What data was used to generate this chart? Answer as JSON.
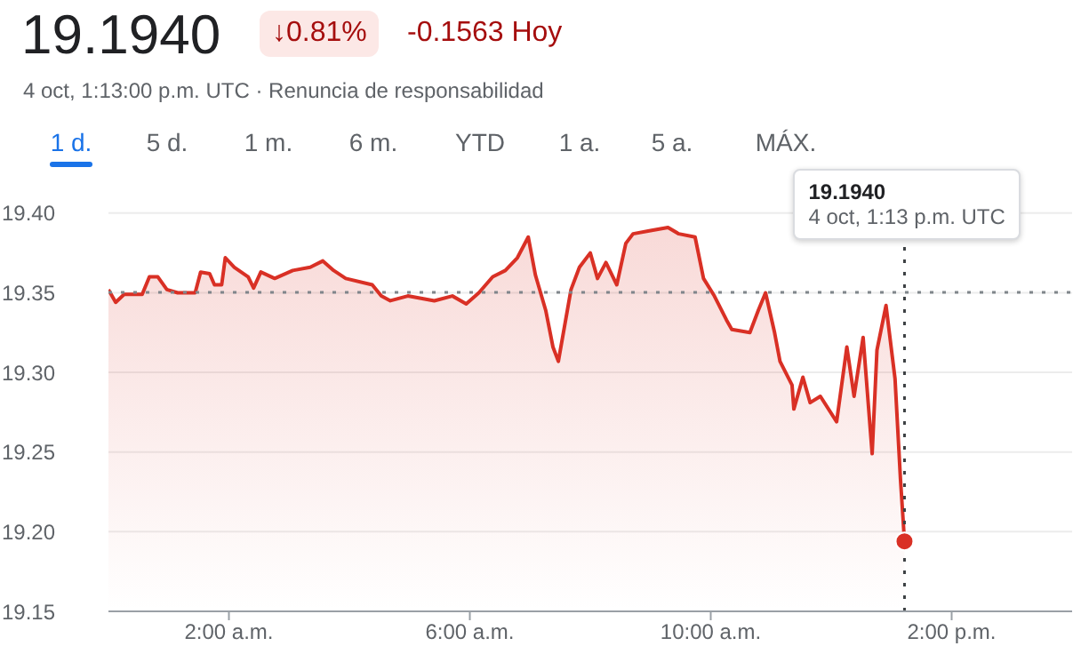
{
  "chart_data": {
    "type": "area",
    "title": "19.1940",
    "subtitle": "4 oct, 1:13:00 p.m. UTC · Renuncia de responsabilidad",
    "annotations": [
      "↓0.81%",
      "-0.1563 Hoy",
      "1 d.",
      "5 d.",
      "1 m.",
      "6 m.",
      "YTD",
      "1 a.",
      "5 a.",
      "MÁX.",
      "19.1940\n4 oct, 1:13 p.m. UTC"
    ],
    "x": [
      0,
      0.12,
      0.26,
      0.56,
      0.68,
      0.82,
      0.97,
      1.15,
      1.44,
      1.53,
      1.68,
      1.76,
      1.88,
      1.94,
      2.09,
      2.32,
      2.41,
      2.53,
      2.76,
      3.06,
      3.35,
      3.56,
      3.74,
      3.94,
      4.38,
      4.53,
      4.68,
      4.97,
      5.41,
      5.71,
      5.94,
      6.15,
      6.38,
      6.59,
      6.79,
      6.97,
      7.09,
      7.26,
      7.38,
      7.47,
      7.68,
      7.82,
      8.0,
      8.12,
      8.26,
      8.44,
      8.59,
      8.71,
      9.0,
      9.29,
      9.47,
      9.74,
      9.88,
      10.06,
      10.26,
      10.35,
      10.65,
      10.79,
      10.91,
      11.06,
      11.15,
      11.35,
      11.38,
      11.53,
      11.65,
      11.82,
      12.09,
      12.26,
      12.38,
      12.53,
      12.68,
      12.76,
      12.91,
      13.06,
      13.15,
      13.217
    ],
    "series": [
      {
        "color": "#d93025",
        "values": [
          19.352,
          19.344,
          19.349,
          19.349,
          19.36,
          19.36,
          19.352,
          19.35,
          19.35,
          19.363,
          19.362,
          19.355,
          19.355,
          19.372,
          19.366,
          19.36,
          19.353,
          19.363,
          19.359,
          19.364,
          19.366,
          19.37,
          19.364,
          19.359,
          19.355,
          19.348,
          19.345,
          19.348,
          19.345,
          19.348,
          19.343,
          19.35,
          19.36,
          19.364,
          19.372,
          19.385,
          19.361,
          19.339,
          19.316,
          19.307,
          19.352,
          19.366,
          19.375,
          19.359,
          19.369,
          19.355,
          19.381,
          19.387,
          19.389,
          19.391,
          19.387,
          19.385,
          19.359,
          19.348,
          19.333,
          19.327,
          19.325,
          19.339,
          19.35,
          19.325,
          19.307,
          19.292,
          19.277,
          19.297,
          19.281,
          19.285,
          19.269,
          19.316,
          19.285,
          19.322,
          19.249,
          19.314,
          19.342,
          19.296,
          19.233,
          19.194
        ]
      }
    ],
    "xlim": [
      0,
      16
    ],
    "xticks": [
      {
        "value": 2,
        "label": "2:00 a.m."
      },
      {
        "value": 6,
        "label": "6:00 a.m."
      },
      {
        "value": 10,
        "label": "10:00 a.m."
      },
      {
        "value": 14,
        "label": "2:00 p.m."
      }
    ],
    "ylim": [
      19.15,
      19.42
    ],
    "yticks": [
      19.15,
      {
        "value": 19.2,
        "label": "19.20"
      },
      19.25,
      {
        "value": 19.3,
        "label": "19.30"
      },
      19.35,
      {
        "value": 19.4,
        "label": "19.40"
      }
    ],
    "ref_lines": [
      {
        "axis": "y",
        "value": 19.3503,
        "color": "#80868b",
        "line_style": "dotted"
      },
      {
        "axis": "x",
        "value": 13.217,
        "color": "#3c4043",
        "line_style": "dotted"
      }
    ],
    "grid": "y",
    "marker": "none",
    "line_style": "solid",
    "legend": false
  }
}
